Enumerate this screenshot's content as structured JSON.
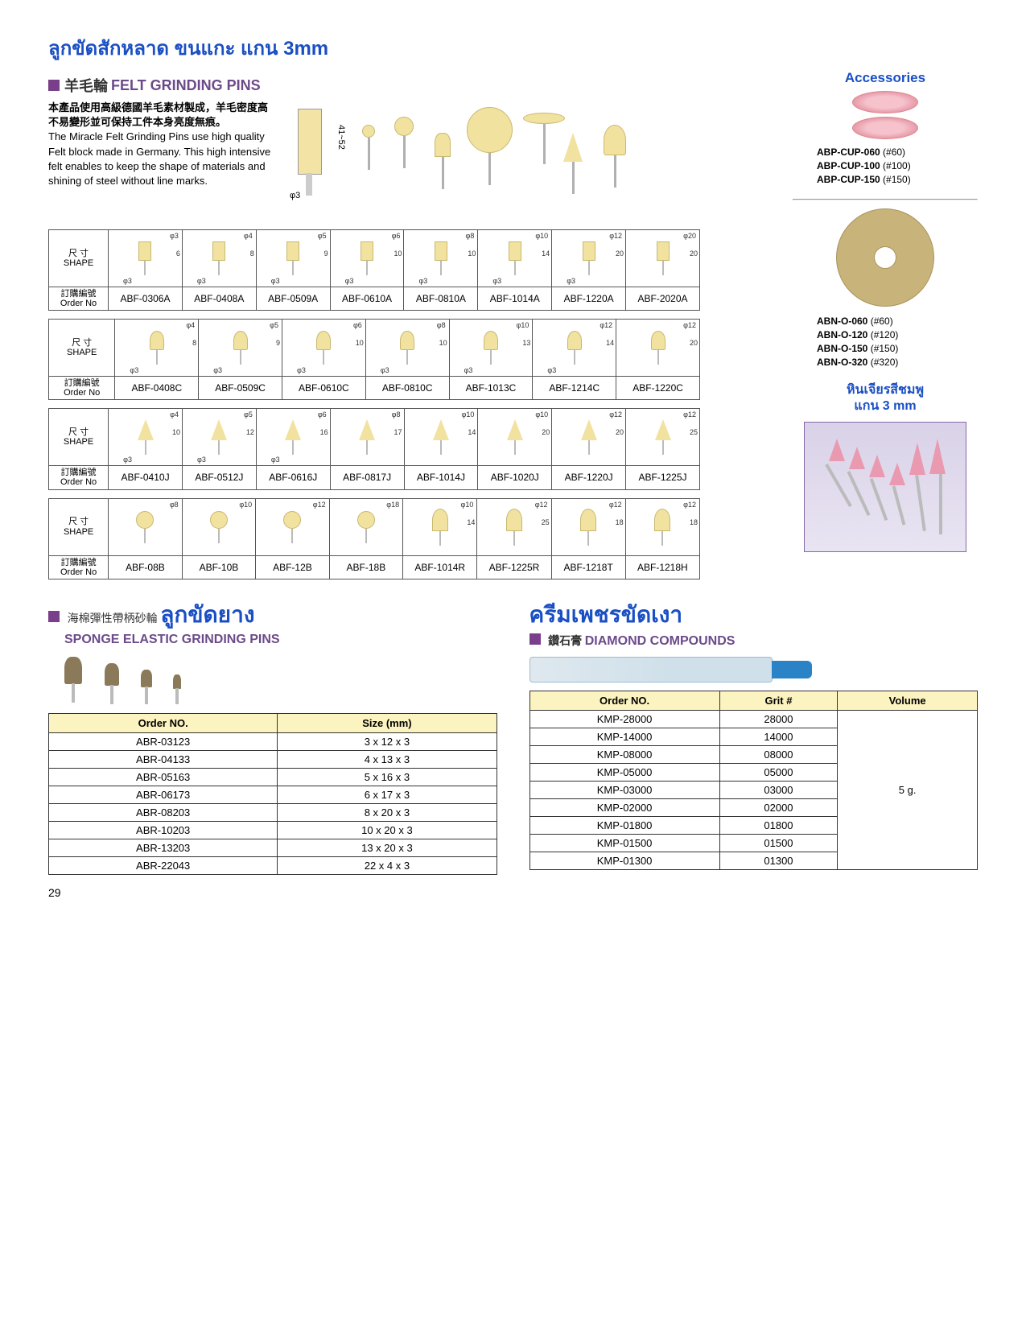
{
  "page_title_thai": "ลูกขัดสักหลาด ขนแกะ แกน 3mm",
  "section_felt": {
    "cn": "羊毛輪",
    "en": "FELT GRINDING PINS",
    "desc_cn": "本產品使用高級德國羊毛素材製成，羊毛密度高不易變形並可保持工件本身亮度無痕。",
    "desc_en": "The Miracle Felt Grinding Pins use high quality Felt block made in Germany. This high intensive felt enables to keep the shape of materials and shining of steel without line marks.",
    "dim_v": "41~52",
    "dim_h": "φ3"
  },
  "accessories": {
    "title": "Accessories",
    "cup": [
      {
        "code": "ABP-CUP-060",
        "grit": "(#60)"
      },
      {
        "code": "ABP-CUP-100",
        "grit": "(#100)"
      },
      {
        "code": "ABP-CUP-150",
        "grit": "(#150)"
      }
    ],
    "ring": [
      {
        "code": "ABN-O-060",
        "grit": "(#60)"
      },
      {
        "code": "ABN-O-120",
        "grit": "(#120)"
      },
      {
        "code": "ABN-O-150",
        "grit": "(#150)"
      },
      {
        "code": "ABN-O-320",
        "grit": "(#320)"
      }
    ],
    "pink_title_1": "หินเจียรสีชมพู",
    "pink_title_2": "แกน 3 mm"
  },
  "labels": {
    "shape_cn": "尺 寸",
    "shape_en": "SHAPE",
    "order_cn": "訂購編號",
    "order_en": "Order No"
  },
  "felt_tables": [
    {
      "shapes": [
        {
          "type": "rect",
          "top": "φ3",
          "h": "6",
          "bot": "φ3"
        },
        {
          "type": "rect",
          "top": "φ4",
          "h": "8",
          "bot": "φ3"
        },
        {
          "type": "rect",
          "top": "φ5",
          "h": "9",
          "bot": "φ3"
        },
        {
          "type": "rect",
          "top": "φ6",
          "h": "10",
          "bot": "φ3"
        },
        {
          "type": "rect",
          "top": "φ8",
          "h": "10",
          "bot": "φ3"
        },
        {
          "type": "rect",
          "top": "φ10",
          "h": "14",
          "bot": "φ3"
        },
        {
          "type": "rect",
          "top": "φ12",
          "h": "20",
          "bot": "φ3"
        },
        {
          "type": "rect",
          "top": "φ20",
          "h": "20",
          "bot": ""
        }
      ],
      "orders": [
        "ABF-0306A",
        "ABF-0408A",
        "ABF-0509A",
        "ABF-0610A",
        "ABF-0810A",
        "ABF-1014A",
        "ABF-1220A",
        "ABF-2020A"
      ]
    },
    {
      "shapes": [
        {
          "type": "dome",
          "top": "φ4",
          "h": "8",
          "bot": "φ3"
        },
        {
          "type": "dome",
          "top": "φ5",
          "h": "9",
          "bot": "φ3"
        },
        {
          "type": "dome",
          "top": "φ6",
          "h": "10",
          "bot": "φ3"
        },
        {
          "type": "dome",
          "top": "φ8",
          "h": "10",
          "bot": "φ3"
        },
        {
          "type": "dome",
          "top": "φ10",
          "h": "13",
          "bot": "φ3"
        },
        {
          "type": "dome",
          "top": "φ12",
          "h": "14",
          "bot": "φ3"
        },
        {
          "type": "dome",
          "top": "φ12",
          "h": "20",
          "bot": ""
        }
      ],
      "orders": [
        "ABF-0408C",
        "ABF-0509C",
        "ABF-0610C",
        "ABF-0810C",
        "ABF-1013C",
        "ABF-1214C",
        "ABF-1220C"
      ]
    },
    {
      "shapes": [
        {
          "type": "cone",
          "top": "φ4",
          "h": "10",
          "bot": "φ3"
        },
        {
          "type": "cone",
          "top": "φ5",
          "h": "12",
          "bot": "φ3"
        },
        {
          "type": "cone",
          "top": "φ6",
          "h": "16",
          "bot": "φ3"
        },
        {
          "type": "cone",
          "top": "φ8",
          "h": "17",
          "bot": ""
        },
        {
          "type": "cone",
          "top": "φ10",
          "h": "14",
          "bot": ""
        },
        {
          "type": "cone",
          "top": "φ10",
          "h": "20",
          "bot": ""
        },
        {
          "type": "cone",
          "top": "φ12",
          "h": "20",
          "bot": ""
        },
        {
          "type": "cone",
          "top": "φ12",
          "h": "25",
          "bot": ""
        }
      ],
      "orders": [
        "ABF-0410J",
        "ABF-0512J",
        "ABF-0616J",
        "ABF-0817J",
        "ABF-1014J",
        "ABF-1020J",
        "ABF-1220J",
        "ABF-1225J"
      ]
    },
    {
      "shapes": [
        {
          "type": "ball",
          "top": "φ8",
          "h": "",
          "bot": ""
        },
        {
          "type": "ball",
          "top": "φ10",
          "h": "",
          "bot": ""
        },
        {
          "type": "ball",
          "top": "φ12",
          "h": "",
          "bot": ""
        },
        {
          "type": "ball",
          "top": "φ18",
          "h": "",
          "bot": ""
        },
        {
          "type": "bullet",
          "top": "φ10",
          "h": "14",
          "bot": ""
        },
        {
          "type": "bullet",
          "top": "φ12",
          "h": "25",
          "bot": ""
        },
        {
          "type": "bullet",
          "top": "φ12",
          "h": "18",
          "bot": ""
        },
        {
          "type": "bullet",
          "top": "φ12",
          "h": "18",
          "bot": ""
        }
      ],
      "orders": [
        "ABF-08B",
        "ABF-10B",
        "ABF-12B",
        "ABF-18B",
        "ABF-1014R",
        "ABF-1225R",
        "ABF-1218T",
        "ABF-1218H"
      ]
    }
  ],
  "sponge": {
    "cn": "海棉彈性帶柄砂輪",
    "thai": "ลูกขัดยาง",
    "en": "SPONGE ELASTIC GRINDING PINS",
    "table": {
      "cols": [
        "Order NO.",
        "Size (mm)"
      ],
      "rows": [
        [
          "ABR-03123",
          "3 x 12 x 3"
        ],
        [
          "ABR-04133",
          "4 x 13 x 3"
        ],
        [
          "ABR-05163",
          "5 x 16 x 3"
        ],
        [
          "ABR-06173",
          "6 x 17 x 3"
        ],
        [
          "ABR-08203",
          "8 x 20 x 3"
        ],
        [
          "ABR-10203",
          "10 x 20 x 3"
        ],
        [
          "ABR-13203",
          "13 x 20 x 3"
        ],
        [
          "ABR-22043",
          "22 x 4 x 3"
        ]
      ]
    }
  },
  "diamond": {
    "thai": "ครีมเพชรขัดเงา",
    "cn": "鑽石膏",
    "en": "DIAMOND COMPOUNDS",
    "table": {
      "cols": [
        "Order NO.",
        "Grit #",
        "Volume"
      ],
      "volume": "5 g.",
      "rows": [
        [
          "KMP-28000",
          "28000"
        ],
        [
          "KMP-14000",
          "14000"
        ],
        [
          "KMP-08000",
          "08000"
        ],
        [
          "KMP-05000",
          "05000"
        ],
        [
          "KMP-03000",
          "03000"
        ],
        [
          "KMP-02000",
          "02000"
        ],
        [
          "KMP-01800",
          "01800"
        ],
        [
          "KMP-01500",
          "01500"
        ],
        [
          "KMP-01300",
          "01300"
        ]
      ]
    }
  },
  "page_number": "29"
}
